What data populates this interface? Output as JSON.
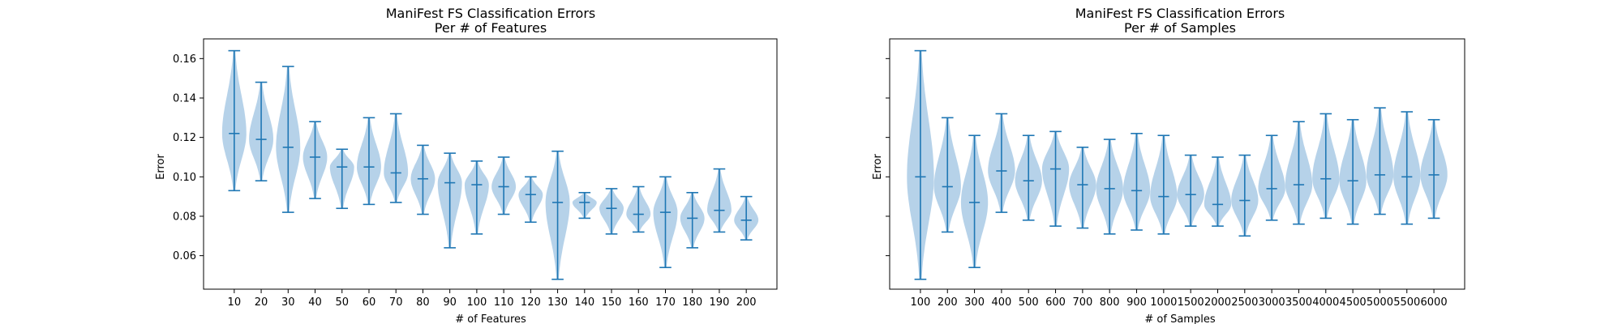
{
  "chart_data": [
    {
      "type": "violin",
      "title": "ManiFest FS Classification Errors",
      "subtitle": "Per # of Features",
      "xlabel": "# of Features",
      "ylabel": "Error",
      "ylim": [
        0.043,
        0.17
      ],
      "yticks": [
        "0.06",
        "0.08",
        "0.10",
        "0.12",
        "0.14",
        "0.16"
      ],
      "y_tick_labels_shown": true,
      "grid": false,
      "colors": {
        "body": "#9ec3e2",
        "lines": "#1f77b4"
      },
      "categories": [
        "10",
        "20",
        "30",
        "40",
        "50",
        "60",
        "70",
        "80",
        "90",
        "100",
        "110",
        "120",
        "130",
        "140",
        "150",
        "160",
        "170",
        "180",
        "190",
        "200"
      ],
      "violins": [
        {
          "min": 0.093,
          "median": 0.122,
          "max": 0.164,
          "width": 0.45
        },
        {
          "min": 0.098,
          "median": 0.119,
          "max": 0.148,
          "width": 0.45
        },
        {
          "min": 0.082,
          "median": 0.115,
          "max": 0.156,
          "width": 0.45
        },
        {
          "min": 0.089,
          "median": 0.11,
          "max": 0.128,
          "width": 0.45
        },
        {
          "min": 0.084,
          "median": 0.105,
          "max": 0.114,
          "width": 0.45
        },
        {
          "min": 0.086,
          "median": 0.105,
          "max": 0.13,
          "width": 0.45
        },
        {
          "min": 0.087,
          "median": 0.102,
          "max": 0.132,
          "width": 0.45
        },
        {
          "min": 0.081,
          "median": 0.099,
          "max": 0.116,
          "width": 0.45
        },
        {
          "min": 0.064,
          "median": 0.097,
          "max": 0.112,
          "width": 0.45
        },
        {
          "min": 0.071,
          "median": 0.096,
          "max": 0.108,
          "width": 0.45
        },
        {
          "min": 0.081,
          "median": 0.095,
          "max": 0.11,
          "width": 0.45
        },
        {
          "min": 0.077,
          "median": 0.091,
          "max": 0.1,
          "width": 0.45
        },
        {
          "min": 0.048,
          "median": 0.087,
          "max": 0.113,
          "width": 0.45
        },
        {
          "min": 0.079,
          "median": 0.087,
          "max": 0.092,
          "width": 0.45
        },
        {
          "min": 0.071,
          "median": 0.084,
          "max": 0.094,
          "width": 0.45
        },
        {
          "min": 0.072,
          "median": 0.081,
          "max": 0.095,
          "width": 0.45
        },
        {
          "min": 0.054,
          "median": 0.082,
          "max": 0.1,
          "width": 0.45
        },
        {
          "min": 0.064,
          "median": 0.079,
          "max": 0.092,
          "width": 0.45
        },
        {
          "min": 0.072,
          "median": 0.083,
          "max": 0.104,
          "width": 0.45
        },
        {
          "min": 0.068,
          "median": 0.078,
          "max": 0.09,
          "width": 0.45
        }
      ]
    },
    {
      "type": "violin",
      "title": "ManiFest FS Classification Errors",
      "subtitle": "Per # of Samples",
      "xlabel": "# of Samples",
      "ylabel": "Error",
      "ylim": [
        0.043,
        0.17
      ],
      "yticks": [
        "0.06",
        "0.08",
        "0.10",
        "0.12",
        "0.14",
        "0.16"
      ],
      "y_tick_labels_shown": false,
      "grid": false,
      "colors": {
        "body": "#9ec3e2",
        "lines": "#1f77b4"
      },
      "categories": [
        "100",
        "200",
        "300",
        "400",
        "500",
        "600",
        "700",
        "800",
        "900",
        "1000",
        "1500",
        "2000",
        "2500",
        "3000",
        "3500",
        "4000",
        "4500",
        "5000",
        "5500",
        "6000"
      ],
      "violins": [
        {
          "min": 0.048,
          "median": 0.1,
          "max": 0.164,
          "width": 0.5
        },
        {
          "min": 0.072,
          "median": 0.095,
          "max": 0.13,
          "width": 0.5
        },
        {
          "min": 0.054,
          "median": 0.087,
          "max": 0.121,
          "width": 0.5
        },
        {
          "min": 0.082,
          "median": 0.103,
          "max": 0.132,
          "width": 0.5
        },
        {
          "min": 0.078,
          "median": 0.098,
          "max": 0.121,
          "width": 0.5
        },
        {
          "min": 0.075,
          "median": 0.104,
          "max": 0.123,
          "width": 0.5
        },
        {
          "min": 0.074,
          "median": 0.096,
          "max": 0.115,
          "width": 0.5
        },
        {
          "min": 0.071,
          "median": 0.094,
          "max": 0.119,
          "width": 0.5
        },
        {
          "min": 0.073,
          "median": 0.093,
          "max": 0.122,
          "width": 0.5
        },
        {
          "min": 0.071,
          "median": 0.09,
          "max": 0.121,
          "width": 0.5
        },
        {
          "min": 0.075,
          "median": 0.091,
          "max": 0.111,
          "width": 0.5
        },
        {
          "min": 0.075,
          "median": 0.086,
          "max": 0.11,
          "width": 0.5
        },
        {
          "min": 0.07,
          "median": 0.088,
          "max": 0.111,
          "width": 0.5
        },
        {
          "min": 0.078,
          "median": 0.094,
          "max": 0.121,
          "width": 0.5
        },
        {
          "min": 0.076,
          "median": 0.096,
          "max": 0.128,
          "width": 0.5
        },
        {
          "min": 0.079,
          "median": 0.099,
          "max": 0.132,
          "width": 0.5
        },
        {
          "min": 0.076,
          "median": 0.098,
          "max": 0.129,
          "width": 0.5
        },
        {
          "min": 0.081,
          "median": 0.101,
          "max": 0.135,
          "width": 0.5
        },
        {
          "min": 0.076,
          "median": 0.1,
          "max": 0.133,
          "width": 0.5
        },
        {
          "min": 0.079,
          "median": 0.101,
          "max": 0.129,
          "width": 0.5
        }
      ]
    }
  ]
}
